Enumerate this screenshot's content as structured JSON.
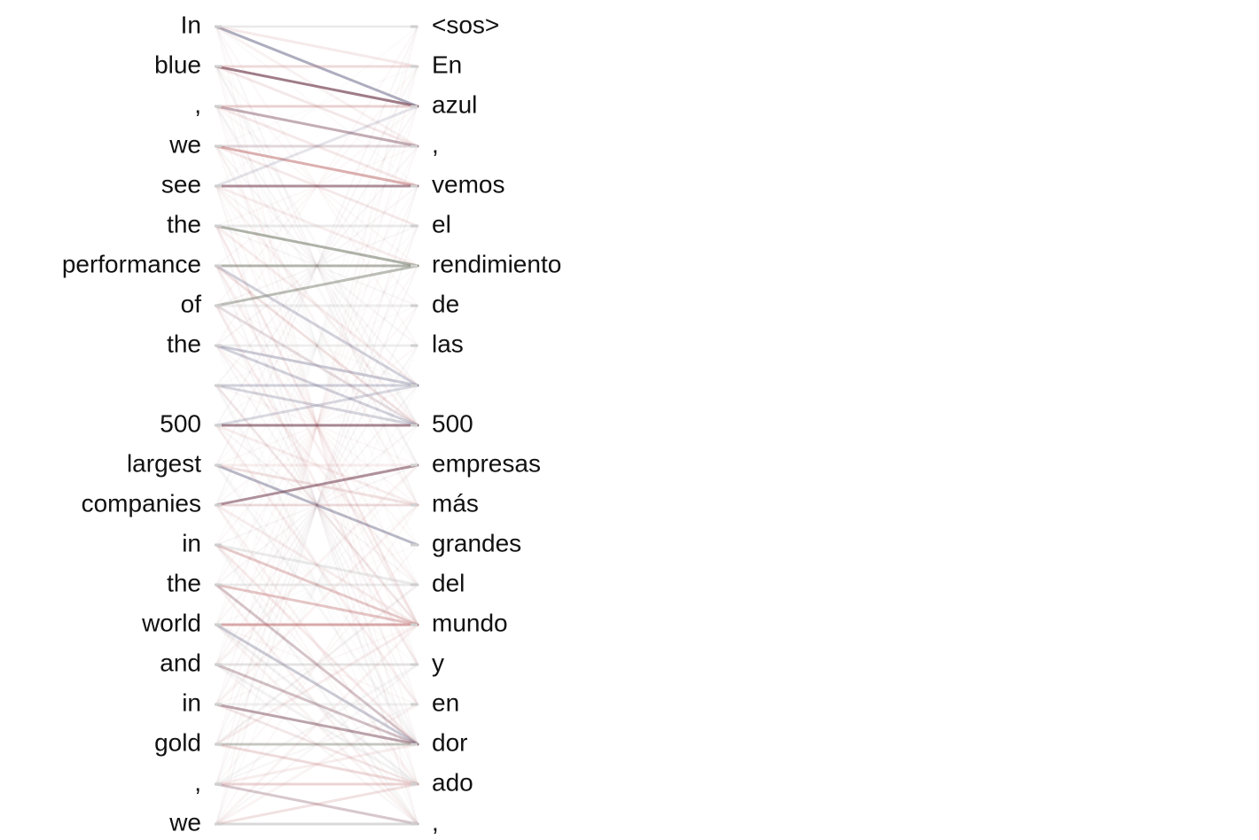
{
  "source_tokens": [
    "In",
    "blue",
    ",",
    "we",
    "see",
    "the",
    "performance",
    "of",
    "the",
    "",
    "500",
    "largest",
    "companies",
    "in",
    "the",
    "world",
    "and",
    "in",
    "gold",
    ",",
    "we"
  ],
  "target_tokens": [
    "<sos>",
    "En",
    "azul",
    ",",
    "vemos",
    "el",
    "rendimiento",
    "de",
    "las",
    "",
    "500",
    "empresas",
    "más",
    "grandes",
    "del",
    "mundo",
    "y",
    "en",
    "dor",
    "ado",
    ","
  ],
  "colors": {
    "text": "#111111",
    "tick": "#cfcfcf",
    "palette": [
      "#7a4a5a",
      "#6a6a8a",
      "#c07070",
      "#7a8070",
      "#b0b0b0",
      "#d09090"
    ]
  },
  "alignments": [
    [
      0,
      2,
      0.55,
      1
    ],
    [
      0,
      0,
      0.18,
      4
    ],
    [
      0,
      1,
      0.15,
      2
    ],
    [
      0,
      3,
      0.12,
      5
    ],
    [
      1,
      2,
      0.72,
      0
    ],
    [
      1,
      1,
      0.25,
      2
    ],
    [
      1,
      3,
      0.18,
      5
    ],
    [
      1,
      10,
      0.08,
      4
    ],
    [
      2,
      3,
      0.45,
      0
    ],
    [
      2,
      2,
      0.3,
      2
    ],
    [
      2,
      4,
      0.2,
      5
    ],
    [
      2,
      11,
      0.08,
      4
    ],
    [
      3,
      4,
      0.55,
      2
    ],
    [
      3,
      3,
      0.22,
      0
    ],
    [
      3,
      5,
      0.15,
      5
    ],
    [
      3,
      12,
      0.08,
      5
    ],
    [
      4,
      4,
      0.6,
      0
    ],
    [
      4,
      2,
      0.18,
      1
    ],
    [
      4,
      6,
      0.15,
      5
    ],
    [
      4,
      10,
      0.08,
      2
    ],
    [
      5,
      6,
      0.6,
      3
    ],
    [
      5,
      5,
      0.25,
      4
    ],
    [
      5,
      9,
      0.15,
      5
    ],
    [
      5,
      15,
      0.1,
      2
    ],
    [
      6,
      6,
      0.55,
      3
    ],
    [
      6,
      9,
      0.3,
      1
    ],
    [
      6,
      10,
      0.18,
      2
    ],
    [
      6,
      15,
      0.12,
      5
    ],
    [
      7,
      6,
      0.5,
      3
    ],
    [
      7,
      7,
      0.2,
      4
    ],
    [
      7,
      10,
      0.18,
      0
    ],
    [
      7,
      16,
      0.1,
      2
    ],
    [
      8,
      9,
      0.35,
      1
    ],
    [
      8,
      10,
      0.3,
      1
    ],
    [
      8,
      8,
      0.18,
      4
    ],
    [
      8,
      14,
      0.1,
      5
    ],
    [
      9,
      9,
      0.3,
      1
    ],
    [
      9,
      10,
      0.28,
      1
    ],
    [
      9,
      15,
      0.12,
      2
    ],
    [
      9,
      18,
      0.08,
      4
    ],
    [
      10,
      10,
      0.65,
      0
    ],
    [
      10,
      9,
      0.25,
      1
    ],
    [
      10,
      12,
      0.15,
      5
    ],
    [
      10,
      17,
      0.1,
      2
    ],
    [
      11,
      13,
      0.45,
      1
    ],
    [
      11,
      12,
      0.2,
      2
    ],
    [
      11,
      11,
      0.15,
      5
    ],
    [
      11,
      18,
      0.1,
      4
    ],
    [
      12,
      11,
      0.6,
      0
    ],
    [
      12,
      12,
      0.2,
      2
    ],
    [
      12,
      15,
      0.15,
      5
    ],
    [
      12,
      19,
      0.08,
      2
    ],
    [
      13,
      15,
      0.35,
      2
    ],
    [
      13,
      14,
      0.25,
      4
    ],
    [
      13,
      18,
      0.18,
      5
    ],
    [
      13,
      20,
      0.1,
      4
    ],
    [
      14,
      15,
      0.4,
      2
    ],
    [
      14,
      14,
      0.2,
      4
    ],
    [
      14,
      18,
      0.3,
      0
    ],
    [
      14,
      20,
      0.12,
      5
    ],
    [
      15,
      15,
      0.6,
      2
    ],
    [
      15,
      18,
      0.35,
      1
    ],
    [
      15,
      19,
      0.18,
      4
    ],
    [
      15,
      20,
      0.1,
      5
    ],
    [
      16,
      16,
      0.3,
      4
    ],
    [
      16,
      18,
      0.35,
      0
    ],
    [
      16,
      19,
      0.15,
      4
    ],
    [
      16,
      11,
      0.1,
      5
    ],
    [
      17,
      18,
      0.5,
      0
    ],
    [
      17,
      17,
      0.18,
      4
    ],
    [
      17,
      19,
      0.15,
      5
    ],
    [
      17,
      12,
      0.08,
      2
    ],
    [
      18,
      18,
      0.4,
      3
    ],
    [
      18,
      19,
      0.25,
      2
    ],
    [
      18,
      15,
      0.15,
      5
    ],
    [
      18,
      14,
      0.1,
      4
    ],
    [
      19,
      19,
      0.3,
      2
    ],
    [
      19,
      20,
      0.3,
      0
    ],
    [
      19,
      18,
      0.15,
      5
    ],
    [
      19,
      16,
      0.1,
      4
    ],
    [
      20,
      20,
      0.45,
      4
    ],
    [
      20,
      19,
      0.2,
      2
    ],
    [
      20,
      17,
      0.1,
      5
    ],
    [
      20,
      15,
      0.08,
      2
    ]
  ]
}
